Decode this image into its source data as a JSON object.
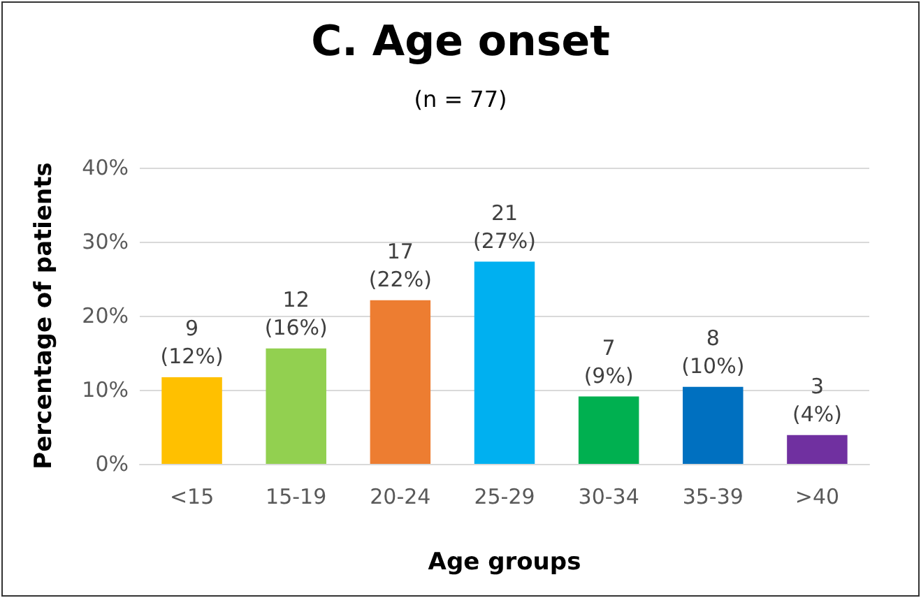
{
  "chart_data": {
    "type": "bar",
    "title": "C. Age onset",
    "subtitle": "(n = 77)",
    "xlabel": "Age groups",
    "ylabel": "Percentage of patients",
    "categories": [
      "<15",
      "15-19",
      "20-24",
      "25-29",
      "30-34",
      "35-39",
      ">40"
    ],
    "values": [
      11.7,
      15.6,
      22.1,
      27.3,
      9.1,
      10.4,
      3.9
    ],
    "colors": [
      "#ffc000",
      "#92d050",
      "#ed7d31",
      "#00b0f0",
      "#00b050",
      "#0070c0",
      "#7030a0"
    ],
    "value_labels": [
      "9\n(12%)",
      "12\n(16%)",
      "17\n(22%)",
      "21\n(27%)",
      "7\n(9%)",
      "8\n(10%)",
      "3\n(4%)"
    ],
    "ylim": [
      0,
      40
    ],
    "yticks": [
      {
        "value": 0,
        "label": "0%"
      },
      {
        "value": 10,
        "label": "10%"
      },
      {
        "value": 20,
        "label": "20%"
      },
      {
        "value": 30,
        "label": "30%"
      },
      {
        "value": 40,
        "label": "40%"
      }
    ],
    "grid": "y"
  }
}
